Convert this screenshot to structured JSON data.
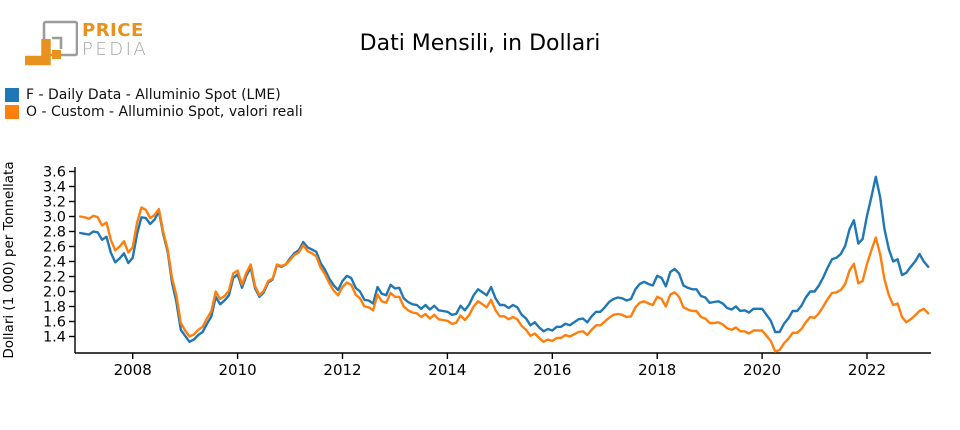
{
  "header": {
    "logo": {
      "line1": "PRICE",
      "line2": "PEDIA"
    },
    "title": "Dati Mensili, in Dollari"
  },
  "legend": [
    {
      "label": "F - Daily Data - Alluminio Spot (LME)",
      "color": "#1f77b4"
    },
    {
      "label": "O - Custom - Alluminio Spot, valori reali",
      "color": "#ff7f0e"
    }
  ],
  "colors": {
    "logo_orange": "#e8911d",
    "logo_gray": "#9b9b9b",
    "axis": "#000000"
  },
  "chart_data": {
    "type": "line",
    "title": "Dati Mensili, in Dollari",
    "xlabel": "",
    "ylabel": "Dollari (1 000) per Tonnellata",
    "grid": false,
    "legend_position": "upper-left-above-plot",
    "x_frequency": "monthly",
    "x_start": "2007-01",
    "x_end": "2023-03",
    "xlim": [
      2006.9,
      2023.22
    ],
    "ylim": [
      1.18,
      3.66
    ],
    "xticks": [
      2008,
      2010,
      2012,
      2014,
      2016,
      2018,
      2020,
      2022
    ],
    "yticks": [
      1.4,
      1.6,
      1.8,
      2.0,
      2.2,
      2.4,
      2.6,
      2.8,
      3.0,
      3.2,
      3.4,
      3.6
    ],
    "series": [
      {
        "name": "F - Daily Data - Alluminio Spot (LME)",
        "color": "#1f77b4",
        "values": [
          2.78,
          2.77,
          2.76,
          2.8,
          2.79,
          2.69,
          2.73,
          2.52,
          2.39,
          2.44,
          2.51,
          2.38,
          2.45,
          2.77,
          2.99,
          2.98,
          2.9,
          2.96,
          3.07,
          2.76,
          2.53,
          2.12,
          1.86,
          1.49,
          1.41,
          1.33,
          1.36,
          1.42,
          1.46,
          1.57,
          1.67,
          1.93,
          1.83,
          1.88,
          1.95,
          2.18,
          2.23,
          2.05,
          2.21,
          2.32,
          2.04,
          1.93,
          1.99,
          2.12,
          2.16,
          2.35,
          2.33,
          2.36,
          2.44,
          2.51,
          2.55,
          2.66,
          2.59,
          2.56,
          2.53,
          2.38,
          2.29,
          2.17,
          2.08,
          2.02,
          2.14,
          2.21,
          2.18,
          2.05,
          2.0,
          1.89,
          1.88,
          1.84,
          2.06,
          1.97,
          1.95,
          2.09,
          2.04,
          2.05,
          1.91,
          1.86,
          1.83,
          1.82,
          1.77,
          1.82,
          1.76,
          1.81,
          1.75,
          1.74,
          1.73,
          1.69,
          1.7,
          1.81,
          1.75,
          1.83,
          1.95,
          2.03,
          1.99,
          1.95,
          2.06,
          1.91,
          1.82,
          1.82,
          1.78,
          1.82,
          1.79,
          1.69,
          1.64,
          1.55,
          1.59,
          1.52,
          1.47,
          1.5,
          1.48,
          1.53,
          1.53,
          1.57,
          1.55,
          1.59,
          1.63,
          1.64,
          1.59,
          1.67,
          1.73,
          1.73,
          1.79,
          1.86,
          1.9,
          1.92,
          1.91,
          1.88,
          1.9,
          2.03,
          2.1,
          2.13,
          2.1,
          2.08,
          2.21,
          2.18,
          2.07,
          2.26,
          2.3,
          2.24,
          2.08,
          2.05,
          2.03,
          2.03,
          1.94,
          1.92,
          1.85,
          1.86,
          1.87,
          1.84,
          1.78,
          1.76,
          1.8,
          1.74,
          1.75,
          1.72,
          1.77,
          1.77,
          1.77,
          1.69,
          1.61,
          1.46,
          1.46,
          1.57,
          1.64,
          1.74,
          1.74,
          1.81,
          1.92,
          2.0,
          2.0,
          2.08,
          2.19,
          2.32,
          2.43,
          2.45,
          2.5,
          2.61,
          2.83,
          2.95,
          2.64,
          2.7,
          3.01,
          3.26,
          3.53,
          3.26,
          2.83,
          2.56,
          2.4,
          2.43,
          2.22,
          2.25,
          2.33,
          2.4,
          2.5,
          2.4,
          2.33
        ]
      },
      {
        "name": "O - Custom - Alluminio Spot, valori reali",
        "color": "#ff7f0e",
        "values": [
          3.0,
          2.99,
          2.97,
          3.01,
          2.99,
          2.88,
          2.92,
          2.69,
          2.55,
          2.6,
          2.67,
          2.52,
          2.59,
          2.92,
          3.12,
          3.09,
          2.98,
          3.02,
          3.1,
          2.79,
          2.56,
          2.18,
          1.95,
          1.58,
          1.48,
          1.4,
          1.43,
          1.49,
          1.53,
          1.64,
          1.74,
          2.0,
          1.9,
          1.94,
          2.01,
          2.24,
          2.28,
          2.09,
          2.25,
          2.36,
          2.07,
          1.95,
          2.01,
          2.14,
          2.17,
          2.36,
          2.34,
          2.36,
          2.42,
          2.49,
          2.52,
          2.62,
          2.54,
          2.51,
          2.47,
          2.32,
          2.23,
          2.11,
          2.01,
          1.95,
          2.06,
          2.12,
          2.09,
          1.96,
          1.91,
          1.8,
          1.79,
          1.75,
          1.96,
          1.87,
          1.85,
          1.98,
          1.93,
          1.93,
          1.8,
          1.75,
          1.72,
          1.71,
          1.66,
          1.7,
          1.64,
          1.69,
          1.63,
          1.62,
          1.61,
          1.57,
          1.58,
          1.68,
          1.62,
          1.69,
          1.8,
          1.87,
          1.83,
          1.79,
          1.89,
          1.75,
          1.67,
          1.67,
          1.63,
          1.66,
          1.63,
          1.54,
          1.49,
          1.41,
          1.44,
          1.38,
          1.33,
          1.36,
          1.34,
          1.38,
          1.38,
          1.42,
          1.4,
          1.43,
          1.46,
          1.47,
          1.42,
          1.49,
          1.55,
          1.55,
          1.6,
          1.65,
          1.69,
          1.7,
          1.69,
          1.66,
          1.67,
          1.79,
          1.85,
          1.87,
          1.84,
          1.82,
          1.93,
          1.9,
          1.8,
          1.96,
          1.99,
          1.93,
          1.79,
          1.76,
          1.74,
          1.74,
          1.66,
          1.64,
          1.58,
          1.58,
          1.59,
          1.56,
          1.51,
          1.49,
          1.52,
          1.47,
          1.47,
          1.44,
          1.48,
          1.48,
          1.48,
          1.41,
          1.34,
          1.2,
          1.22,
          1.31,
          1.37,
          1.45,
          1.45,
          1.5,
          1.59,
          1.66,
          1.65,
          1.71,
          1.8,
          1.9,
          1.98,
          1.99,
          2.02,
          2.1,
          2.28,
          2.37,
          2.11,
          2.14,
          2.37,
          2.55,
          2.72,
          2.5,
          2.16,
          1.95,
          1.82,
          1.84,
          1.66,
          1.59,
          1.63,
          1.68,
          1.74,
          1.77,
          1.71
        ]
      }
    ]
  }
}
